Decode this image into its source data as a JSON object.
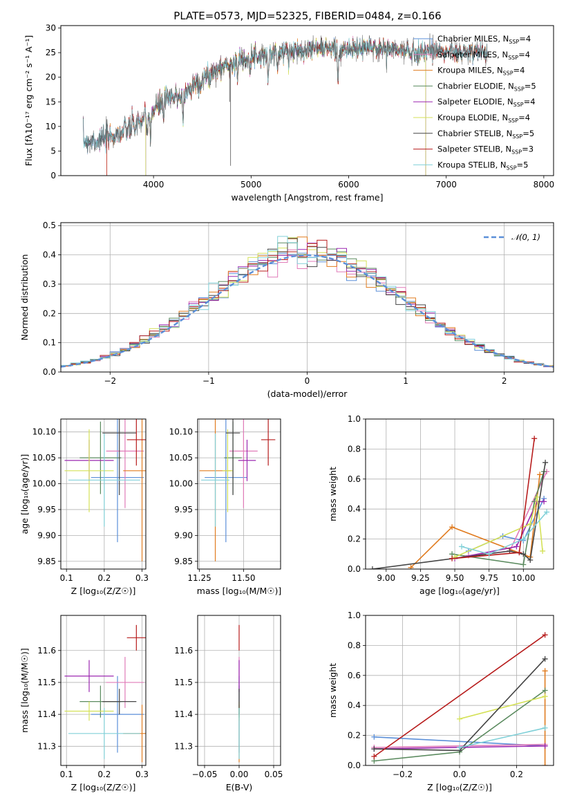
{
  "title": "PLATE=0573, MJD=52325, FIBERID=0484, z=0.166",
  "colors": {
    "chabrier_miles": "#5b8fd8",
    "salpeter_miles": "#e07ab8",
    "kroupa_miles": "#e07b1f",
    "chabrier_elodie": "#5a8a5e",
    "salpeter_elodie": "#9b27b0",
    "kroupa_elodie": "#d4e157",
    "chabrier_stelib": "#444444",
    "salpeter_stelib": "#b71c1c",
    "kroupa_stelib": "#80d0d8"
  },
  "chart_data": [
    {
      "type": "line",
      "id": "spectrum",
      "xlabel": "wavelength [Angstrom, rest frame]",
      "ylabel": "Flux [f$_\\lambda$10$^{-17}$ erg cm$^{-2}$ s$^{-1}$ A$^{-1}$]",
      "ylabel_display": "Flux [fλ10⁻¹⁷ erg cm⁻² s⁻¹ A⁻¹]",
      "xlim": [
        3050,
        8100
      ],
      "ylim": [
        0,
        30.5
      ],
      "xticks": [
        "4000",
        "5000",
        "6000",
        "7000",
        "8000"
      ],
      "yticks": [
        "0",
        "5",
        "10",
        "15",
        "20",
        "25",
        "30"
      ],
      "grid": false,
      "legend": "upper right",
      "continuum": {
        "x": [
          3280,
          3500,
          3700,
          3900,
          4100,
          4300,
          4500,
          4700,
          4900,
          5100,
          5300,
          5500,
          5700,
          5900,
          6100,
          6300,
          6500,
          6700,
          6900,
          7100,
          7300,
          7420
        ],
        "y": [
          7.0,
          7.5,
          9.0,
          11.5,
          15.0,
          16.5,
          19.5,
          22.0,
          23.5,
          24.5,
          25.0,
          25.5,
          26.0,
          25.5,
          25.8,
          26.0,
          25.5,
          25.0,
          25.5,
          25.0,
          25.0,
          25.3
        ]
      },
      "absorption_lines": [
        {
          "x": 3934,
          "depth": 5
        },
        {
          "x": 3969,
          "depth": 4
        },
        {
          "x": 4102,
          "depth": 3
        },
        {
          "x": 4304,
          "depth": 5
        },
        {
          "x": 4861,
          "depth": 3
        },
        {
          "x": 5175,
          "depth": 5
        },
        {
          "x": 5270,
          "depth": 3
        },
        {
          "x": 5890,
          "depth": 6
        }
      ],
      "series": [
        {
          "name": "Chabrier MILES, N$_{SSP}$=4",
          "label": "Chabrier MILES, N",
          "sub": "SSP",
          "n": "=4",
          "color": "#5b8fd8",
          "range": [
            3280,
            7420
          ]
        },
        {
          "name": "Salpeter MILES, N$_{SSP}$=4",
          "label": "Salpeter MILES, N",
          "sub": "SSP",
          "n": "=4",
          "color": "#e07ab8",
          "range": [
            3280,
            7420
          ]
        },
        {
          "name": "Kroupa MILES, N$_{SSP}$=4",
          "label": "Kroupa MILES, N",
          "sub": "SSP",
          "n": "=4",
          "color": "#e07b1f",
          "range": [
            3520,
            7420
          ]
        },
        {
          "name": "Chabrier ELODIE, N$_{SSP}$=5",
          "label": "Chabrier ELODIE, N",
          "sub": "SSP",
          "n": "=5",
          "color": "#5a8a5e",
          "range": [
            3920,
            6790
          ]
        },
        {
          "name": "Salpeter ELODIE, N$_{SSP}$=4",
          "label": "Salpeter ELODIE, N",
          "sub": "SSP",
          "n": "=4",
          "color": "#9b27b0",
          "range": [
            3920,
            6790
          ]
        },
        {
          "name": "Kroupa ELODIE, N$_{SSP}$=4",
          "label": "Kroupa ELODIE, N",
          "sub": "SSP",
          "n": "=4",
          "color": "#d4e157",
          "range": [
            3920,
            6790
          ]
        },
        {
          "name": "Chabrier STELIB, N$_{SSP}$=5",
          "label": "Chabrier STELIB, N",
          "sub": "SSP",
          "n": "=5",
          "color": "#444444",
          "range": [
            3280,
            7420
          ]
        },
        {
          "name": "Salpeter STELIB, N$_{SSP}$=3",
          "label": "Salpeter STELIB, N",
          "sub": "SSP",
          "n": "=3",
          "color": "#b71c1c",
          "range": [
            3520,
            7420
          ]
        },
        {
          "name": "Kroupa STELIB, N$_{SSP}$=5",
          "label": "Kroupa STELIB, N",
          "sub": "SSP",
          "n": "=5",
          "color": "#80d0d8",
          "range": [
            3280,
            7420
          ]
        }
      ]
    },
    {
      "type": "histogram",
      "id": "residuals",
      "xlabel": "(data-model)/error",
      "ylabel": "Normed distribution",
      "xlim": [
        -2.5,
        2.5
      ],
      "ylim": [
        0,
        0.51
      ],
      "xticks": [
        "−2",
        "−1",
        "0",
        "1",
        "2"
      ],
      "yticks": [
        "0.0",
        "0.1",
        "0.2",
        "0.3",
        "0.4",
        "0.5"
      ],
      "grid": true,
      "legend": "upper right",
      "reference": {
        "name": "$\\mathcal{N}(0,1)$",
        "label": "𝒩(0, 1)",
        "color": "#5b8fd8",
        "style": "dashed"
      },
      "bin_width": 0.1
    },
    {
      "type": "scatter",
      "id": "age_vs_Z",
      "xlabel": "Z [log$_{10}$(Z/Z$_\\odot$)]",
      "xlabel_display": "Z [log₁₀(Z/Z☉)]",
      "ylabel": "age  [log$_{10}$(age/yr)]",
      "ylabel_display": "age  [log₁₀(age/yr)]",
      "xlim": [
        0.085,
        0.31
      ],
      "ylim": [
        9.835,
        10.125
      ],
      "xticks": [
        "0.1",
        "0.2",
        "0.3"
      ],
      "yticks": [
        "9.85",
        "9.90",
        "9.95",
        "10.00",
        "10.05",
        "10.10"
      ],
      "grid": true,
      "points": [
        {
          "x": 0.235,
          "y": 10.012,
          "xerr": 0.07,
          "yerr": 0.125,
          "color": "#5b8fd8"
        },
        {
          "x": 0.255,
          "y": 10.063,
          "xerr": 0.05,
          "yerr": 0.11,
          "color": "#e07ab8"
        },
        {
          "x": 0.3,
          "y": 10.025,
          "xerr": 0.05,
          "yerr": 0.175,
          "color": "#e07b1f"
        },
        {
          "x": 0.19,
          "y": 10.05,
          "xerr": 0.055,
          "yerr": 0.07,
          "color": "#5a8a5e"
        },
        {
          "x": 0.16,
          "y": 10.045,
          "xerr": 0.065,
          "yerr": 0.04,
          "color": "#9b27b0"
        },
        {
          "x": 0.16,
          "y": 10.025,
          "xerr": 0.065,
          "yerr": 0.08,
          "color": "#d4e157"
        },
        {
          "x": 0.24,
          "y": 10.098,
          "xerr": 0.045,
          "yerr": 0.12,
          "color": "#444444"
        },
        {
          "x": 0.285,
          "y": 10.085,
          "xerr": 0.025,
          "yerr": 0.05,
          "color": "#b71c1c"
        },
        {
          "x": 0.2,
          "y": 10.007,
          "xerr": 0.095,
          "yerr": 0.09,
          "color": "#80d0d8"
        }
      ]
    },
    {
      "type": "scatter",
      "id": "age_vs_mass",
      "xlabel": "mass [log$_{10}$(M/M$_\\odot$)]",
      "xlabel_display": "mass [log₁₀(M/M☉)]",
      "ylabel": "",
      "xlim": [
        11.24,
        11.71
      ],
      "ylim": [
        9.835,
        10.125
      ],
      "xticks": [
        "11.25",
        "11.50"
      ],
      "yticks": [
        "9.85",
        "9.90",
        "9.95",
        "10.00",
        "10.05",
        "10.10"
      ],
      "grid": true,
      "points": [
        {
          "x": 11.4,
          "y": 10.012,
          "xerr": 0.12,
          "yerr": 0.125,
          "color": "#5b8fd8"
        },
        {
          "x": 11.5,
          "y": 10.063,
          "xerr": 0.08,
          "yerr": 0.11,
          "color": "#e07ab8"
        },
        {
          "x": 11.34,
          "y": 10.025,
          "xerr": 0.09,
          "yerr": 0.175,
          "color": "#e07b1f"
        },
        {
          "x": 11.44,
          "y": 10.05,
          "xerr": 0.05,
          "yerr": 0.07,
          "color": "#5a8a5e"
        },
        {
          "x": 11.52,
          "y": 10.045,
          "xerr": 0.05,
          "yerr": 0.04,
          "color": "#9b27b0"
        },
        {
          "x": 11.41,
          "y": 10.025,
          "xerr": 0.03,
          "yerr": 0.08,
          "color": "#d4e157"
        },
        {
          "x": 11.44,
          "y": 10.098,
          "xerr": 0.04,
          "yerr": 0.12,
          "color": "#444444"
        },
        {
          "x": 11.64,
          "y": 10.085,
          "xerr": 0.04,
          "yerr": 0.05,
          "color": "#b71c1c"
        },
        {
          "x": 11.34,
          "y": 10.007,
          "xerr": 0.08,
          "yerr": 0.09,
          "color": "#80d0d8"
        }
      ]
    },
    {
      "type": "line",
      "id": "mass_weight_vs_age",
      "xlabel": "age  [log$_{10}$(age/yr)]",
      "xlabel_display": "age  [log₁₀(age/yr)]",
      "ylabel": "mass weight",
      "xlim": [
        8.85,
        10.22
      ],
      "ylim": [
        0,
        1.0
      ],
      "xticks": [
        "9.00",
        "9.25",
        "9.50",
        "9.75",
        "10.00"
      ],
      "yticks": [
        "0.0",
        "0.2",
        "0.4",
        "0.6",
        "0.8",
        "1.0"
      ],
      "grid": true,
      "series": [
        {
          "color": "#5b8fd8",
          "x": [
            9.6,
            9.85,
            10.0,
            10.15
          ],
          "y": [
            0.12,
            0.22,
            0.19,
            0.47
          ]
        },
        {
          "color": "#e07ab8",
          "x": [
            9.6,
            9.9,
            10.17
          ],
          "y": [
            0.09,
            0.12,
            0.65
          ]
        },
        {
          "color": "#e07b1f",
          "x": [
            9.18,
            9.48,
            10.05,
            10.12
          ],
          "y": [
            0.01,
            0.28,
            0.08,
            0.63
          ]
        },
        {
          "color": "#5a8a5e",
          "x": [
            9.48,
            10.0,
            10.08,
            10.15
          ],
          "y": [
            0.1,
            0.03,
            0.45,
            0.65
          ]
        },
        {
          "color": "#9b27b0",
          "x": [
            9.5,
            9.95,
            10.1,
            10.15
          ],
          "y": [
            0.07,
            0.15,
            0.45,
            0.45
          ]
        },
        {
          "color": "#d4e157",
          "x": [
            9.5,
            10.05,
            10.1,
            10.14
          ],
          "y": [
            0.08,
            0.3,
            0.48,
            0.12
          ]
        },
        {
          "color": "#444444",
          "x": [
            8.9,
            9.9,
            10.0,
            10.05,
            10.16
          ],
          "y": [
            0.0,
            0.12,
            0.1,
            0.06,
            0.71
          ]
        },
        {
          "color": "#b71c1c",
          "x": [
            9.48,
            9.97,
            10.08
          ],
          "y": [
            0.07,
            0.11,
            0.87
          ]
        },
        {
          "color": "#80d0d8",
          "x": [
            9.55,
            9.75,
            10.0,
            10.17
          ],
          "y": [
            0.15,
            0.1,
            0.2,
            0.38
          ]
        }
      ]
    },
    {
      "type": "scatter",
      "id": "mass_vs_Z",
      "xlabel": "Z [log$_{10}$(Z/Z$_\\odot$)]",
      "xlabel_display": "Z [log₁₀(Z/Z☉)]",
      "ylabel": "mass [log$_{10}$(M/M$_\\odot$)]",
      "ylabel_display": "mass [log₁₀(M/M☉)]",
      "xlim": [
        0.085,
        0.31
      ],
      "ylim": [
        11.24,
        11.71
      ],
      "xticks": [
        "0.1",
        "0.2",
        "0.3"
      ],
      "yticks": [
        "11.3",
        "11.4",
        "11.5",
        "11.6"
      ],
      "grid": true,
      "points": [
        {
          "x": 0.235,
          "y": 11.4,
          "xerr": 0.07,
          "yerr": 0.12,
          "color": "#5b8fd8"
        },
        {
          "x": 0.255,
          "y": 11.5,
          "xerr": 0.05,
          "yerr": 0.08,
          "color": "#e07ab8"
        },
        {
          "x": 0.3,
          "y": 11.34,
          "xerr": 0.05,
          "yerr": 0.09,
          "color": "#e07b1f"
        },
        {
          "x": 0.19,
          "y": 11.44,
          "xerr": 0.055,
          "yerr": 0.05,
          "color": "#5a8a5e"
        },
        {
          "x": 0.16,
          "y": 11.52,
          "xerr": 0.065,
          "yerr": 0.05,
          "color": "#9b27b0"
        },
        {
          "x": 0.16,
          "y": 11.41,
          "xerr": 0.065,
          "yerr": 0.03,
          "color": "#d4e157"
        },
        {
          "x": 0.24,
          "y": 11.44,
          "xerr": 0.045,
          "yerr": 0.04,
          "color": "#444444"
        },
        {
          "x": 0.285,
          "y": 11.64,
          "xerr": 0.025,
          "yerr": 0.04,
          "color": "#b71c1c"
        },
        {
          "x": 0.2,
          "y": 11.34,
          "xerr": 0.095,
          "yerr": 0.08,
          "color": "#80d0d8"
        }
      ]
    },
    {
      "type": "scatter",
      "id": "mass_vs_ebv",
      "xlabel": "E(B-V)",
      "ylabel": "",
      "xlim": [
        -0.06,
        0.06
      ],
      "ylim": [
        11.24,
        11.71
      ],
      "xticks": [
        "−0.05",
        "0.00",
        "0.05"
      ],
      "yticks": [
        "11.3",
        "11.4",
        "11.5",
        "11.6"
      ],
      "grid": true,
      "points": [
        {
          "x": 0,
          "y": 11.4,
          "yerr": 0.12,
          "color": "#5b8fd8"
        },
        {
          "x": 0,
          "y": 11.5,
          "yerr": 0.08,
          "color": "#e07ab8"
        },
        {
          "x": 0,
          "y": 11.34,
          "yerr": 0.09,
          "color": "#e07b1f"
        },
        {
          "x": 0,
          "y": 11.44,
          "yerr": 0.05,
          "color": "#5a8a5e"
        },
        {
          "x": 0,
          "y": 11.52,
          "yerr": 0.05,
          "color": "#9b27b0"
        },
        {
          "x": 0,
          "y": 11.41,
          "yerr": 0.03,
          "color": "#d4e157"
        },
        {
          "x": 0,
          "y": 11.44,
          "yerr": 0.04,
          "color": "#444444"
        },
        {
          "x": 0,
          "y": 11.64,
          "yerr": 0.04,
          "color": "#b71c1c"
        },
        {
          "x": 0,
          "y": 11.34,
          "yerr": 0.08,
          "color": "#80d0d8"
        }
      ]
    },
    {
      "type": "line",
      "id": "mass_weight_vs_Z",
      "xlabel": "Z [log$_{10}$(Z/Z$_\\odot$)]",
      "xlabel_display": "Z [log₁₀(Z/Z☉)]",
      "ylabel": "mass weight",
      "xlim": [
        -0.33,
        0.33
      ],
      "ylim": [
        0,
        1.0
      ],
      "xticks": [
        "−0.2",
        "0.0",
        "0.2"
      ],
      "yticks": [
        "0.0",
        "0.2",
        "0.4",
        "0.6",
        "0.8",
        "1.0"
      ],
      "grid": true,
      "series": [
        {
          "color": "#5b8fd8",
          "x": [
            -0.3,
            0.3
          ],
          "y": [
            0.19,
            0.13
          ]
        },
        {
          "color": "#e07ab8",
          "x": [
            -0.3,
            0.3
          ],
          "y": [
            0.12,
            0.14
          ]
        },
        {
          "color": "#e07b1f",
          "x": [
            0.3,
            0.3
          ],
          "y": [
            0.0,
            0.63
          ]
        },
        {
          "color": "#5a8a5e",
          "x": [
            -0.3,
            0.0,
            0.3
          ],
          "y": [
            0.03,
            0.09,
            0.5
          ]
        },
        {
          "color": "#9b27b0",
          "x": [
            -0.3,
            0.3
          ],
          "y": [
            0.11,
            0.13
          ]
        },
        {
          "color": "#d4e157",
          "x": [
            0.0,
            0.3
          ],
          "y": [
            0.31,
            0.46
          ]
        },
        {
          "color": "#444444",
          "x": [
            -0.3,
            0.0,
            0.3
          ],
          "y": [
            0.11,
            0.1,
            0.71
          ]
        },
        {
          "color": "#b71c1c",
          "x": [
            -0.3,
            0.3
          ],
          "y": [
            0.06,
            0.87
          ]
        },
        {
          "color": "#80d0d8",
          "x": [
            0.0,
            0.3
          ],
          "y": [
            0.12,
            0.25
          ]
        }
      ]
    }
  ]
}
